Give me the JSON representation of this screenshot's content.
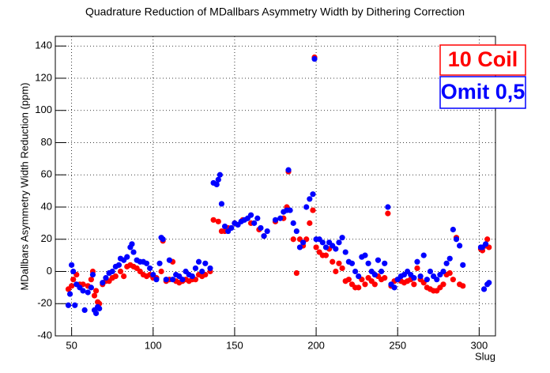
{
  "chart_data": {
    "type": "scatter",
    "title": "Quadrature Reduction of MDallbars Asymmetry Width by Dithering Correction",
    "x_label": "Slug",
    "y_label": "MDallbars Asymmetry Width Reduction (ppm)",
    "xlim": [
      40,
      310
    ],
    "ylim": [
      -40,
      146
    ],
    "xticks": [
      50,
      100,
      150,
      200,
      250,
      300
    ],
    "yticks": [
      -40,
      -20,
      0,
      20,
      40,
      60,
      80,
      100,
      120,
      140
    ],
    "grid": true,
    "series": [
      {
        "name": "10 Coil",
        "color": "#ff0000",
        "x": [
          48,
          50,
          51,
          53,
          55,
          57,
          60,
          62,
          63,
          64,
          65,
          66,
          67,
          69,
          71,
          73,
          75,
          77,
          80,
          82,
          84,
          86,
          88,
          90,
          92,
          94,
          96,
          98,
          100,
          102,
          105,
          106,
          108,
          110,
          112,
          114,
          116,
          118,
          120,
          122,
          124,
          126,
          128,
          130,
          132,
          135,
          137,
          140,
          142,
          144,
          146,
          150,
          155,
          160,
          165,
          168,
          175,
          180,
          182,
          183,
          186,
          188,
          190,
          192,
          194,
          196,
          198,
          199,
          200,
          202,
          204,
          206,
          208,
          210,
          212,
          214,
          216,
          218,
          220,
          222,
          224,
          226,
          228,
          230,
          232,
          234,
          236,
          238,
          240,
          242,
          244,
          246,
          248,
          250,
          252,
          254,
          256,
          258,
          260,
          262,
          264,
          266,
          268,
          270,
          272,
          274,
          276,
          278,
          280,
          282,
          284,
          286,
          288,
          290,
          301,
          302,
          304,
          305,
          306
        ],
        "values": [
          -11,
          -9,
          -5,
          -2,
          -8,
          -8,
          -9,
          -5,
          0,
          -15,
          -12,
          -19,
          -20,
          -8,
          -6,
          -6,
          -4,
          -3,
          0,
          -3,
          3,
          4,
          3,
          2,
          0,
          -2,
          -3,
          -2,
          -4,
          -4,
          0,
          19,
          -6,
          -5,
          6,
          -6,
          -7,
          -6,
          -5,
          -6,
          -5,
          -5,
          -2,
          -3,
          -2,
          0,
          32,
          31,
          25,
          25,
          27,
          30,
          32,
          30,
          26,
          22,
          31,
          33,
          40,
          62,
          20,
          -1,
          20,
          16,
          20,
          30,
          38,
          133,
          15,
          12,
          10,
          10,
          14,
          6,
          0,
          5,
          2,
          -6,
          -5,
          -8,
          -10,
          -10,
          -5,
          -8,
          -4,
          -6,
          -8,
          -3,
          -5,
          -4,
          36,
          -9,
          -6,
          -5,
          -6,
          -7,
          -6,
          -5,
          -8,
          2,
          -5,
          -7,
          -10,
          -11,
          -12,
          -12,
          -10,
          -8,
          -2,
          -1,
          -5,
          21,
          -8,
          -9,
          14,
          13,
          16,
          20,
          15
        ]
      },
      {
        "name": "Omit 0,5",
        "color": "#0000ff",
        "x": [
          48,
          49,
          50,
          51,
          52,
          53,
          55,
          57,
          58,
          60,
          62,
          63,
          64,
          65,
          66,
          67,
          69,
          71,
          73,
          75,
          77,
          79,
          80,
          82,
          84,
          86,
          87,
          88,
          90,
          92,
          94,
          96,
          98,
          100,
          102,
          104,
          105,
          106,
          108,
          110,
          112,
          114,
          116,
          118,
          120,
          122,
          124,
          126,
          128,
          130,
          132,
          135,
          137,
          139,
          140,
          141,
          142,
          144,
          146,
          148,
          150,
          152,
          154,
          156,
          158,
          160,
          162,
          164,
          166,
          168,
          170,
          175,
          178,
          180,
          182,
          183,
          184,
          186,
          188,
          190,
          192,
          194,
          196,
          198,
          199,
          200,
          202,
          204,
          206,
          208,
          210,
          212,
          214,
          216,
          218,
          220,
          222,
          224,
          226,
          228,
          230,
          232,
          234,
          236,
          238,
          240,
          242,
          244,
          246,
          248,
          250,
          252,
          254,
          256,
          258,
          260,
          262,
          264,
          266,
          268,
          270,
          272,
          274,
          276,
          278,
          280,
          282,
          284,
          286,
          288,
          290,
          301,
          302,
          303,
          304,
          305,
          306
        ],
        "values": [
          -21,
          -14,
          4,
          0,
          -21,
          -8,
          -10,
          -12,
          -24,
          -13,
          -10,
          -2,
          -24,
          -26,
          -22,
          -23,
          -7,
          -4,
          -1,
          0,
          3,
          4,
          8,
          7,
          9,
          15,
          17,
          12,
          7,
          6,
          6,
          5,
          2,
          -2,
          -5,
          5,
          21,
          20,
          -5,
          7,
          -5,
          -2,
          -3,
          -5,
          0,
          -2,
          -3,
          2,
          6,
          0,
          5,
          2,
          55,
          54,
          57,
          60,
          42,
          28,
          25,
          27,
          30,
          29,
          31,
          32,
          33,
          35,
          30,
          33,
          27,
          22,
          25,
          32,
          33,
          37,
          38,
          63,
          38,
          30,
          25,
          15,
          18,
          40,
          45,
          48,
          132,
          20,
          20,
          18,
          15,
          18,
          16,
          14,
          18,
          21,
          12,
          6,
          5,
          0,
          -3,
          9,
          10,
          5,
          0,
          -2,
          7,
          0,
          5,
          40,
          -8,
          -10,
          -5,
          -3,
          -2,
          0,
          -2,
          -4,
          6,
          -3,
          10,
          -5,
          0,
          -3,
          -5,
          -2,
          0,
          5,
          8,
          26,
          20,
          16,
          4,
          15,
          15,
          -11,
          17,
          -8,
          -7
        ]
      }
    ]
  }
}
